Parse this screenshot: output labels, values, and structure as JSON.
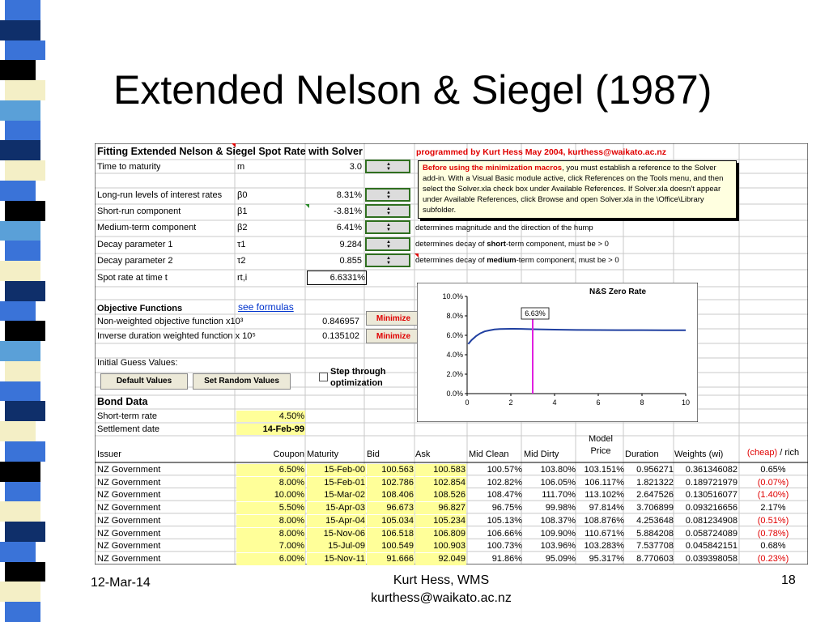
{
  "slide": {
    "title": "Extended Nelson & Siegel (1987)",
    "footer_date": "12-Mar-14",
    "footer_author": "Kurt Hess, WMS",
    "footer_email": "kurthess@waikato.ac.nz",
    "page_number": "18",
    "stripe_colors": [
      "#3a73d8",
      "#0f2f6a",
      "#000000",
      "#f4efc6",
      "#5aa0d8"
    ]
  },
  "sheet": {
    "heading": "Fitting Extended Nelson & Siegel Spot Rate with Solver",
    "credit": "programmed by Kurt Hess May 2004, kurthess@waikato.ac.nz",
    "params": [
      {
        "label": "Time to maturity",
        "symbol": "m",
        "value": "3.0"
      },
      {
        "label": "Long-run levels of interest rates",
        "symbol": "β0",
        "value": "8.31%"
      },
      {
        "label": "Short-run component",
        "symbol": "β1",
        "value": "-3.81%"
      },
      {
        "label": "Medium-term component",
        "symbol": "β2",
        "value": "6.41%"
      },
      {
        "label": "Decay parameter 1",
        "symbol": "τ1",
        "value": "9.284"
      },
      {
        "label": "Decay parameter 2",
        "symbol": "τ2",
        "value": "0.855"
      },
      {
        "label": "Spot rate at time t",
        "symbol": "rt,i",
        "value": "6.6331%"
      }
    ],
    "notes": {
      "medium": "determines magnitude and the direction of the hump",
      "decay1_pre": "determines decay of ",
      "decay1_bold": "short",
      "decay1_post": "-term component, must be > 0",
      "decay2_pre": "determines decay of ",
      "decay2_bold": "medium",
      "decay2_post": "-term component, must be > 0"
    },
    "comment_bold": "Before using the minimization macros",
    "comment_text": ", you must establish a reference to the Solver add-in. With a Visual Basic module active, click References on the Tools menu, and then select the Solver.xla check box under Available References. If Solver.xla doesn't appear under Available References, click Browse and open Solver.xla in the \\Office\\Library subfolder.",
    "objective": {
      "heading": "Objective Functions",
      "link": "see formulas",
      "row1_label": "Non-weighted objective function x10³",
      "row1_value": "0.846957",
      "row2_label": "Inverse duration weighted function x 10⁵",
      "row2_value": "0.135102",
      "minimize": "Minimize"
    },
    "initial_guess": "Initial Guess Values:",
    "default_values": "Default Values",
    "random_values": "Set Random Values",
    "step_through": "Step through optimization",
    "bond_data": "Bond Data",
    "short_term_rate_label": "Short-term rate",
    "short_term_rate": "4.50%",
    "settlement_label": "Settlement date",
    "settlement_date": "14-Feb-99",
    "columns": [
      "Issuer",
      "Coupon",
      "Maturity",
      "Bid",
      "Ask",
      "Mid Clean",
      "Mid Dirty",
      "Model Price",
      "Duration",
      "Weights (wi)",
      "(cheap) / rich"
    ],
    "bonds": [
      [
        "NZ Government",
        "6.50%",
        "15-Feb-00",
        "100.563",
        "100.583",
        "100.57%",
        "103.80%",
        "103.151%",
        "0.956271",
        "0.361346082",
        "0.65%"
      ],
      [
        "NZ Government",
        "8.00%",
        "15-Feb-01",
        "102.786",
        "102.854",
        "102.82%",
        "106.05%",
        "106.117%",
        "1.821322",
        "0.189721979",
        "(0.07%)"
      ],
      [
        "NZ Government",
        "10.00%",
        "15-Mar-02",
        "108.406",
        "108.526",
        "108.47%",
        "111.70%",
        "113.102%",
        "2.647526",
        "0.130516077",
        "(1.40%)"
      ],
      [
        "NZ Government",
        "5.50%",
        "15-Apr-03",
        "96.673",
        "96.827",
        "96.75%",
        "99.98%",
        "97.814%",
        "3.706899",
        "0.093216656",
        "2.17%"
      ],
      [
        "NZ Government",
        "8.00%",
        "15-Apr-04",
        "105.034",
        "105.234",
        "105.13%",
        "108.37%",
        "108.876%",
        "4.253648",
        "0.081234908",
        "(0.51%)"
      ],
      [
        "NZ Government",
        "8.00%",
        "15-Nov-06",
        "106.518",
        "106.809",
        "106.66%",
        "109.90%",
        "110.671%",
        "5.884208",
        "0.058724089",
        "(0.78%)"
      ],
      [
        "NZ Government",
        "7.00%",
        "15-Jul-09",
        "100.549",
        "100.903",
        "100.73%",
        "103.96%",
        "103.283%",
        "7.537708",
        "0.045842151",
        "0.68%"
      ],
      [
        "NZ Government",
        "6.00%",
        "15-Nov-11",
        "91.666",
        "92.049",
        "91.86%",
        "95.09%",
        "95.317%",
        "8.770603",
        "0.039398058",
        "(0.23%)"
      ]
    ]
  },
  "chart_data": {
    "type": "line",
    "title": "N&S Zero Rate",
    "xlim": [
      0,
      10
    ],
    "ylim": [
      0,
      10
    ],
    "x_ticks": [
      "0",
      "2",
      "4",
      "6",
      "8",
      "10"
    ],
    "y_ticks": [
      "0.0%",
      "2.0%",
      "4.0%",
      "6.0%",
      "8.0%",
      "10.0%"
    ],
    "x": [
      0.05,
      0.2,
      0.4,
      0.6,
      0.8,
      1,
      1.25,
      1.5,
      2,
      2.5,
      3,
      3.5,
      4,
      5,
      6,
      7,
      8,
      9,
      10
    ],
    "values": [
      5.1,
      5.5,
      5.9,
      6.2,
      6.4,
      6.5,
      6.6,
      6.65,
      6.67,
      6.66,
      6.63,
      6.6,
      6.58,
      6.55,
      6.54,
      6.53,
      6.53,
      6.52,
      6.52
    ],
    "marker_x": 3.0,
    "marker_label": "6.63%",
    "series_color": "#1f3fa0",
    "marker_color": "#e020e0"
  }
}
